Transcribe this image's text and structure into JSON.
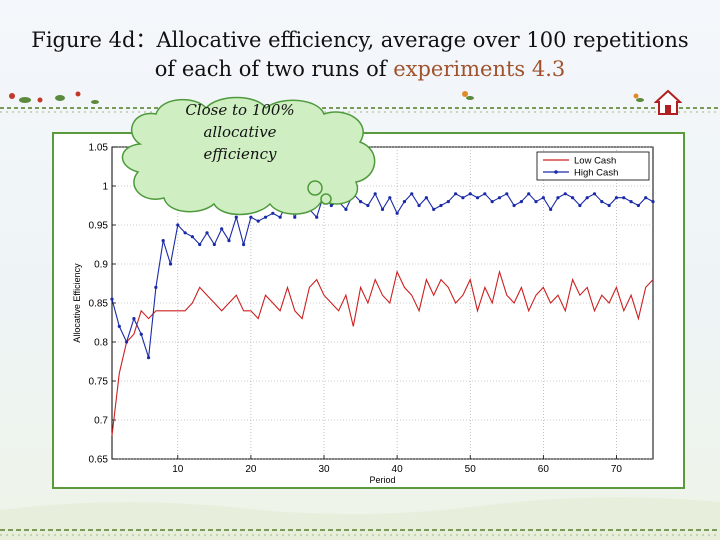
{
  "slide": {
    "title_line1": "Figure 4d：Allocative efficiency, average over 100 repetitions",
    "title_line2_prefix": "of each of two runs of ",
    "title_line2_highlight": "experiments 4.3",
    "callout_line1": "Close to 100%",
    "callout_line2": "allocative",
    "callout_line3": "efficiency",
    "accent_color": "#5b9a3c",
    "highlight_color": "#a0522d"
  },
  "chart_data": {
    "type": "line",
    "xlabel": "Period",
    "ylabel": "Allocative Efficiency",
    "xlim": [
      1,
      75
    ],
    "ylim": [
      0.65,
      1.05
    ],
    "xticks": [
      10,
      20,
      30,
      40,
      50,
      60,
      70
    ],
    "yticks": [
      0.65,
      0.7,
      0.75,
      0.8,
      0.85,
      0.9,
      0.95,
      1,
      1.05
    ],
    "grid": true,
    "legend_position": "top-right",
    "series": [
      {
        "name": "Low Cash",
        "color": "#cc2020",
        "marker": "none",
        "x": [
          1,
          2,
          3,
          4,
          5,
          6,
          7,
          8,
          9,
          10,
          11,
          12,
          13,
          14,
          15,
          16,
          17,
          18,
          19,
          20,
          21,
          22,
          23,
          24,
          25,
          26,
          27,
          28,
          29,
          30,
          31,
          32,
          33,
          34,
          35,
          36,
          37,
          38,
          39,
          40,
          41,
          42,
          43,
          44,
          45,
          46,
          47,
          48,
          49,
          50,
          51,
          52,
          53,
          54,
          55,
          56,
          57,
          58,
          59,
          60,
          61,
          62,
          63,
          64,
          65,
          66,
          67,
          68,
          69,
          70,
          71,
          72,
          73,
          74,
          75
        ],
        "values": [
          0.68,
          0.76,
          0.8,
          0.81,
          0.84,
          0.83,
          0.84,
          0.84,
          0.84,
          0.84,
          0.84,
          0.85,
          0.87,
          0.86,
          0.85,
          0.84,
          0.85,
          0.86,
          0.84,
          0.84,
          0.83,
          0.86,
          0.85,
          0.84,
          0.87,
          0.84,
          0.83,
          0.87,
          0.88,
          0.86,
          0.85,
          0.84,
          0.86,
          0.82,
          0.87,
          0.85,
          0.88,
          0.86,
          0.85,
          0.89,
          0.87,
          0.86,
          0.84,
          0.88,
          0.86,
          0.88,
          0.87,
          0.85,
          0.86,
          0.88,
          0.84,
          0.87,
          0.85,
          0.89,
          0.86,
          0.85,
          0.87,
          0.84,
          0.86,
          0.87,
          0.85,
          0.86,
          0.84,
          0.88,
          0.86,
          0.87,
          0.84,
          0.86,
          0.85,
          0.87,
          0.84,
          0.86,
          0.83,
          0.87,
          0.88
        ]
      },
      {
        "name": "High Cash",
        "color": "#1a2aa8",
        "marker": "dot",
        "x": [
          1,
          2,
          3,
          4,
          5,
          6,
          7,
          8,
          9,
          10,
          11,
          12,
          13,
          14,
          15,
          16,
          17,
          18,
          19,
          20,
          21,
          22,
          23,
          24,
          25,
          26,
          27,
          28,
          29,
          30,
          31,
          32,
          33,
          34,
          35,
          36,
          37,
          38,
          39,
          40,
          41,
          42,
          43,
          44,
          45,
          46,
          47,
          48,
          49,
          50,
          51,
          52,
          53,
          54,
          55,
          56,
          57,
          58,
          59,
          60,
          61,
          62,
          63,
          64,
          65,
          66,
          67,
          68,
          69,
          70,
          71,
          72,
          73,
          74,
          75
        ],
        "values": [
          0.855,
          0.82,
          0.8,
          0.83,
          0.81,
          0.78,
          0.87,
          0.93,
          0.9,
          0.95,
          0.94,
          0.935,
          0.925,
          0.94,
          0.925,
          0.945,
          0.93,
          0.96,
          0.925,
          0.96,
          0.955,
          0.96,
          0.965,
          0.96,
          0.98,
          0.96,
          0.98,
          0.97,
          0.96,
          0.99,
          0.975,
          0.98,
          0.97,
          0.99,
          0.98,
          0.975,
          0.99,
          0.97,
          0.985,
          0.965,
          0.98,
          0.99,
          0.975,
          0.985,
          0.97,
          0.975,
          0.98,
          0.99,
          0.985,
          0.99,
          0.985,
          0.99,
          0.98,
          0.985,
          0.99,
          0.975,
          0.98,
          0.99,
          0.98,
          0.985,
          0.97,
          0.985,
          0.99,
          0.985,
          0.975,
          0.985,
          0.99,
          0.98,
          0.975,
          0.985,
          0.985,
          0.98,
          0.975,
          0.985,
          0.98
        ]
      }
    ]
  }
}
